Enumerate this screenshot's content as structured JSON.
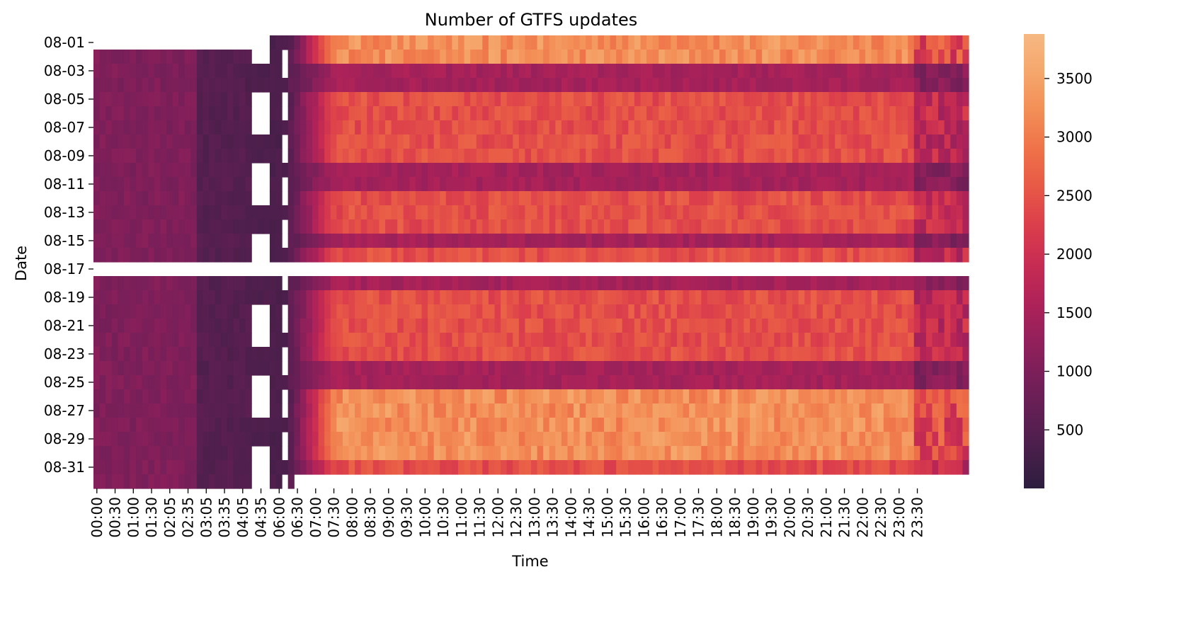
{
  "chart_data": {
    "type": "heatmap",
    "title": "Number of GTFS updates",
    "xlabel": "Time",
    "ylabel": "Date",
    "x_tick_labels": [
      "00:00",
      "00:30",
      "01:00",
      "01:30",
      "02:05",
      "02:35",
      "03:05",
      "03:35",
      "04:05",
      "04:35",
      "06:00",
      "06:30",
      "07:00",
      "07:30",
      "08:00",
      "08:30",
      "09:00",
      "09:30",
      "10:00",
      "10:30",
      "11:00",
      "11:30",
      "12:00",
      "12:30",
      "13:00",
      "13:30",
      "14:00",
      "14:30",
      "15:00",
      "15:30",
      "16:00",
      "16:30",
      "17:00",
      "17:30",
      "18:00",
      "18:30",
      "19:00",
      "19:30",
      "20:00",
      "20:30",
      "21:00",
      "21:30",
      "22:00",
      "22:30",
      "23:00",
      "23:30"
    ],
    "y_tick_labels": [
      "08-01",
      "08-03",
      "08-05",
      "08-07",
      "08-09",
      "08-11",
      "08-13",
      "08-15",
      "08-17",
      "08-19",
      "08-21",
      "08-23",
      "08-25",
      "08-27",
      "08-29",
      "08-31"
    ],
    "dates": [
      "08-01",
      "08-02",
      "08-03",
      "08-04",
      "08-05",
      "08-06",
      "08-07",
      "08-08",
      "08-09",
      "08-10",
      "08-11",
      "08-12",
      "08-13",
      "08-14",
      "08-15",
      "08-16",
      "08-17",
      "08-18",
      "08-19",
      "08-20",
      "08-21",
      "08-22",
      "08-23",
      "08-24",
      "08-25",
      "08-26",
      "08-27",
      "08-28",
      "08-29",
      "08-30",
      "08-31",
      "09-01"
    ],
    "colorbar": {
      "min": 0,
      "max": 3880,
      "ticks": [
        500,
        1000,
        1500,
        2000,
        2500,
        3000,
        3500
      ],
      "colormap": [
        "#2d1e3e",
        "#481f4a",
        "#611f53",
        "#7a1f59",
        "#96205b",
        "#b12358",
        "#c92d52",
        "#dc3f4b",
        "#e85a46",
        "#ef7349",
        "#f38f57",
        "#f5a76c",
        "#f6b882"
      ]
    },
    "cell_values_note": "",
    "rows": [
      {
        "date": "08-01",
        "values": [
          null,
          null,
          null,
          null,
          null,
          null,
          null,
          null,
          null,
          null,
          null,
          null,
          null,
          null,
          null,
          null,
          null,
          null,
          null,
          null,
          null,
          null,
          null,
          null,
          null,
          null,
          null,
          null,
          null,
          null,
          null,
          null,
          null,
          null,
          null,
          null,
          null,
          null,
          null,
          null,
          null,
          null,
          null,
          null,
          null,
          null,
          null,
          null,
          null,
          null,
          null,
          null,
          null,
          null,
          null,
          null,
          null,
          null,
          null,
          null,
          null,
          null,
          null,
          null,
          null,
          null,
          null,
          null,
          null,
          null,
          null,
          null,
          null,
          null,
          null,
          null,
          null,
          null,
          null,
          null,
          null,
          null,
          null,
          null,
          null,
          null,
          null,
          null,
          null,
          null,
          null,
          null,
          null,
          null,
          null,
          null,
          null,
          null,
          null,
          null,
          null,
          null,
          null,
          null,
          null,
          null,
          null,
          null,
          null,
          null,
          null,
          null,
          null,
          null,
          null,
          null,
          null,
          null,
          null,
          null,
          null,
          null,
          null,
          null,
          null,
          null,
          null,
          null,
          null,
          null,
          null,
          null,
          null,
          null,
          null,
          null,
          null,
          null,
          null,
          null,
          null,
          null,
          null,
          null
        ]
      }
    ]
  }
}
